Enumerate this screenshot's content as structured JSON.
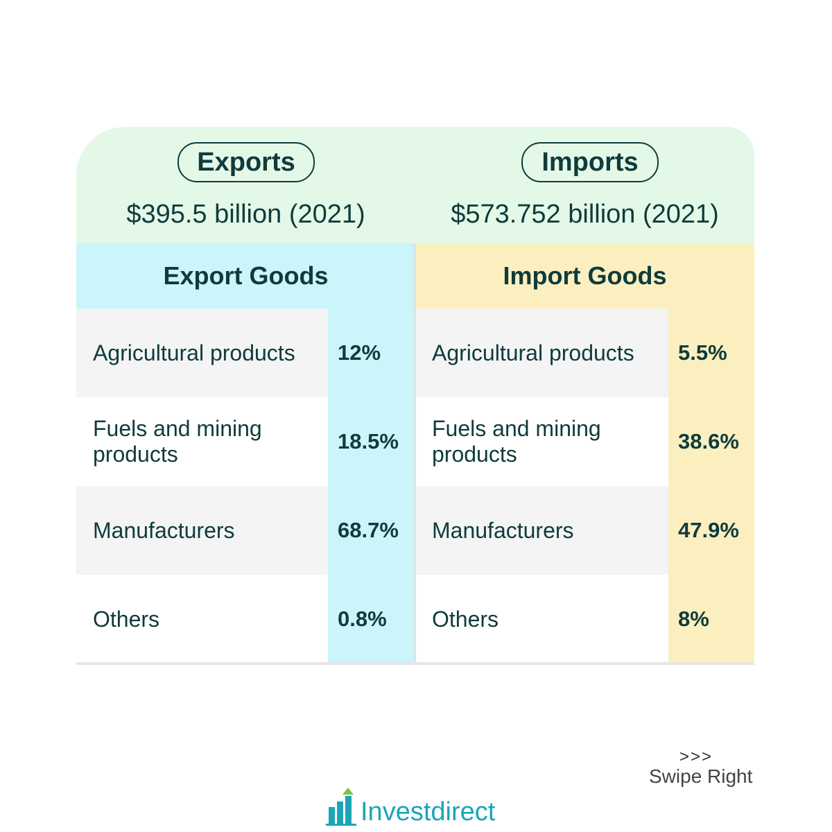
{
  "exports": {
    "title": "Exports",
    "total": "$395.5 billion (2021)",
    "goods_title": "Export Goods",
    "rows": [
      [
        "Agricultural products",
        "12%"
      ],
      [
        "Fuels and mining products",
        "18.5%"
      ],
      [
        "Manufacturers",
        "68.7%"
      ],
      [
        "Others",
        "0.8%"
      ]
    ]
  },
  "imports": {
    "title": "Imports",
    "total": "$573.752 billion (2021)",
    "goods_title": "Import Goods",
    "rows": [
      [
        "Agricultural products",
        "5.5%"
      ],
      [
        "Fuels and mining products",
        "38.6%"
      ],
      [
        "Manufacturers",
        "47.9%"
      ],
      [
        "Others",
        "8%"
      ]
    ]
  },
  "footer": {
    "swipe_arrows": ">>>",
    "swipe": "Swipe Right",
    "brand": "Investdirect"
  }
}
